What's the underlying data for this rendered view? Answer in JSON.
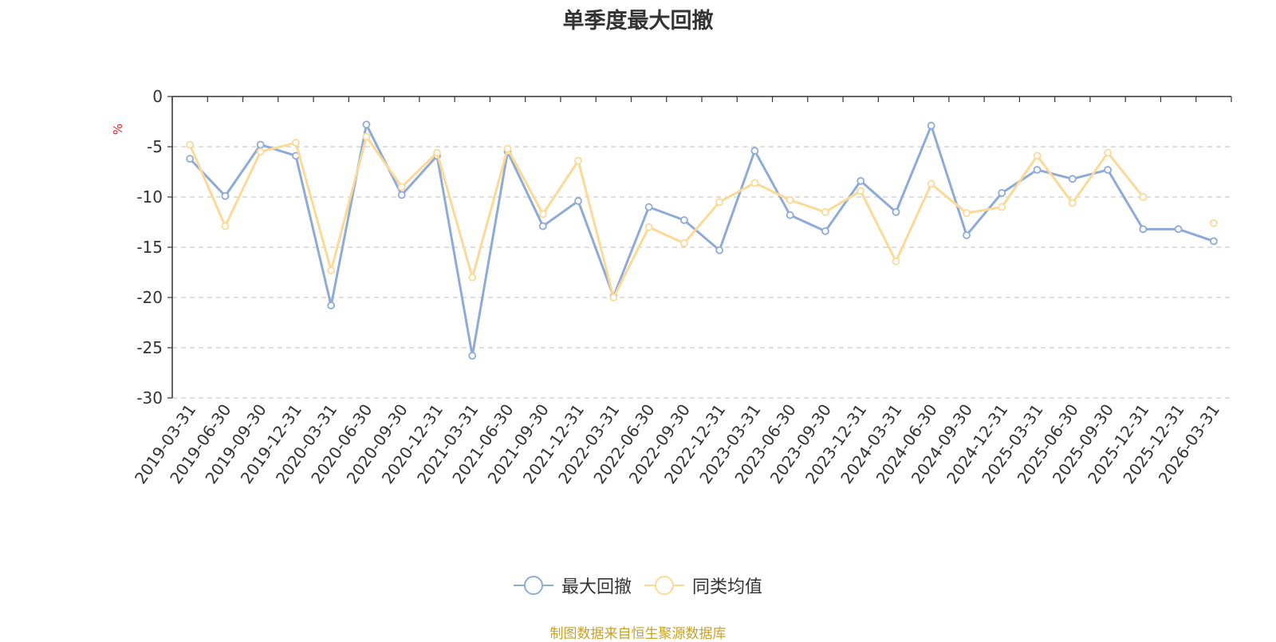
{
  "chart_data": {
    "type": "line",
    "title": "单季度最大回撤",
    "ylabel": "%",
    "ylim": [
      -30,
      0
    ],
    "yticks": [
      0,
      -5,
      -10,
      -15,
      -20,
      -25,
      -30
    ],
    "grid": true,
    "legend_position": "bottom",
    "categories": [
      "2019-03-31",
      "2019-06-30",
      "2019-09-30",
      "2019-12-31",
      "2020-03-31",
      "2020-06-30",
      "2020-09-30",
      "2020-12-31",
      "2021-03-31",
      "2021-06-30",
      "2021-09-30",
      "2021-12-31",
      "2022-03-31",
      "2022-06-30",
      "2022-09-30",
      "2022-12-31",
      "2023-03-31",
      "2023-06-30",
      "2023-09-30",
      "2023-12-31",
      "2024-03-31",
      "2024-06-30",
      "2024-09-30",
      "2024-12-31",
      "2025-03-31",
      "2025-06-30",
      "2025-09-30",
      "2025-12-31",
      "2025-12-31",
      "2026-03-31"
    ],
    "series": [
      {
        "name": "最大回撤",
        "color": "#8eabd8",
        "values": [
          -6.2,
          -9.9,
          -4.8,
          -5.9,
          -20.8,
          -2.8,
          -9.8,
          -5.9,
          -25.8,
          -5.5,
          -12.9,
          -10.4,
          -19.9,
          -11.0,
          -12.3,
          -15.3,
          -5.4,
          -11.8,
          -13.4,
          -8.4,
          -11.5,
          -2.9,
          -13.8,
          -9.6,
          -7.3,
          -8.2,
          -7.3,
          -13.2,
          -13.2,
          -14.4
        ]
      },
      {
        "name": "同类均值",
        "color": "#fcd997",
        "values": [
          -4.8,
          -12.9,
          -5.5,
          -4.6,
          -17.3,
          -4.0,
          -9.0,
          -5.6,
          -18.0,
          -5.2,
          -11.7,
          -6.4,
          -20.0,
          -13.0,
          -14.6,
          -10.5,
          -8.6,
          -10.3,
          -11.5,
          -9.4,
          -16.4,
          -8.7,
          -11.6,
          -11.0,
          -5.9,
          -10.6,
          -5.6,
          -10.0,
          null,
          -12.6
        ]
      }
    ]
  },
  "source_note": "制图数据来自恒生聚源数据库"
}
